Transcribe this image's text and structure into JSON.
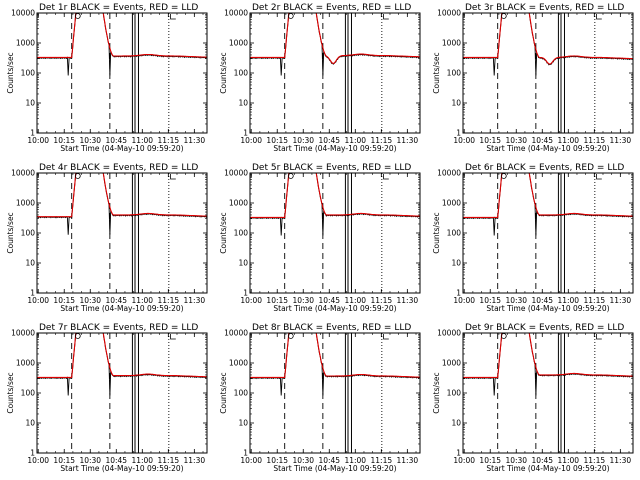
{
  "colors": {
    "background": "#ffffff",
    "events": "#000000",
    "lld": "#dd0000"
  },
  "chart_data": [
    {
      "type": "line",
      "title": "Det 1r  BLACK = Events, RED = LLD",
      "xlabel": "Start Time (04-May-10 09:59:20)",
      "ylabel": "Counts/sec",
      "yscale": "log",
      "ylim": [
        1,
        10000
      ],
      "x_ticks": [
        "10:00",
        "10:15",
        "10:30",
        "10:45",
        "11:00",
        "11:15",
        "11:30"
      ],
      "y_ticks": [
        "1",
        "10",
        "100",
        "1000",
        "10000"
      ],
      "xlim_min": [
        0,
        98
      ],
      "dashed_vlines_min": [
        20,
        42
      ],
      "solid_vlines_min": [
        55,
        56.5,
        58.5
      ],
      "dotted_vlines_min": [
        76
      ],
      "baseline": 330,
      "peak": 12000,
      "rise_min": [
        20,
        22.5
      ],
      "fall_min": [
        38,
        44
      ],
      "post_level": 370,
      "dip_min": 48,
      "dip_factor": 1.0,
      "spike_min": [
        18,
        42
      ],
      "series": [
        {
          "name": "Events",
          "color": "#000000"
        },
        {
          "name": "LLD",
          "color": "#dd0000"
        }
      ]
    },
    {
      "type": "line",
      "title": "Det 2r  BLACK = Events, RED = LLD",
      "xlabel": "Start Time (04-May-10 09:59:20)",
      "ylabel": "Counts/sec",
      "yscale": "log",
      "ylim": [
        1,
        10000
      ],
      "x_ticks": [
        "10:00",
        "10:15",
        "10:30",
        "10:45",
        "11:00",
        "11:15",
        "11:30"
      ],
      "y_ticks": [
        "1",
        "10",
        "100",
        "1000",
        "10000"
      ],
      "xlim_min": [
        0,
        98
      ],
      "dashed_vlines_min": [
        20,
        42
      ],
      "solid_vlines_min": [
        55,
        56.5,
        58.5
      ],
      "dotted_vlines_min": [
        76
      ],
      "baseline": 330,
      "peak": 12000,
      "rise_min": [
        20,
        22.5
      ],
      "fall_min": [
        38,
        44
      ],
      "post_level": 380,
      "dip_min": 48,
      "dip_factor": 0.55,
      "spike_min": [
        18,
        42
      ],
      "series": [
        {
          "name": "Events",
          "color": "#000000"
        },
        {
          "name": "LLD",
          "color": "#dd0000"
        }
      ]
    },
    {
      "type": "line",
      "title": "Det 3r  BLACK = Events, RED = LLD",
      "xlabel": "Start Time (04-May-10 09:59:20)",
      "ylabel": "Counts/sec",
      "yscale": "log",
      "ylim": [
        1,
        10000
      ],
      "x_ticks": [
        "10:00",
        "10:15",
        "10:30",
        "10:45",
        "11:00",
        "11:15",
        "11:30"
      ],
      "y_ticks": [
        "1",
        "10",
        "100",
        "1000",
        "10000"
      ],
      "xlim_min": [
        0,
        98
      ],
      "dashed_vlines_min": [
        20,
        42
      ],
      "solid_vlines_min": [
        55,
        56.5,
        58.5
      ],
      "dotted_vlines_min": [
        76
      ],
      "baseline": 330,
      "peak": 12000,
      "rise_min": [
        20,
        22.5
      ],
      "fall_min": [
        38,
        44
      ],
      "post_level": 330,
      "dip_min": 50,
      "dip_factor": 0.6,
      "spike_min": [
        18,
        42
      ],
      "series": [
        {
          "name": "Events",
          "color": "#000000"
        },
        {
          "name": "LLD",
          "color": "#dd0000"
        }
      ]
    },
    {
      "type": "line",
      "title": "Det 4r  BLACK = Events, RED = LLD",
      "xlabel": "Start Time (04-May-10 09:59:20)",
      "ylabel": "Counts/sec",
      "yscale": "log",
      "ylim": [
        1,
        10000
      ],
      "x_ticks": [
        "10:00",
        "10:15",
        "10:30",
        "10:45",
        "11:00",
        "11:15",
        "11:30"
      ],
      "y_ticks": [
        "1",
        "10",
        "100",
        "1000",
        "10000"
      ],
      "xlim_min": [
        0,
        98
      ],
      "dashed_vlines_min": [
        20,
        42
      ],
      "solid_vlines_min": [
        55,
        56.5,
        58.5
      ],
      "dotted_vlines_min": [
        76
      ],
      "baseline": 350,
      "peak": 12000,
      "rise_min": [
        20,
        22.5
      ],
      "fall_min": [
        38,
        44
      ],
      "post_level": 400,
      "dip_min": 48,
      "dip_factor": 1.0,
      "spike_min": [
        18,
        42
      ],
      "series": [
        {
          "name": "Events",
          "color": "#000000"
        },
        {
          "name": "LLD",
          "color": "#dd0000"
        }
      ]
    },
    {
      "type": "line",
      "title": "Det 5r  BLACK = Events, RED = LLD",
      "xlabel": "Start Time (04-May-10 09:59:20)",
      "ylabel": "Counts/sec",
      "yscale": "log",
      "ylim": [
        1,
        10000
      ],
      "x_ticks": [
        "10:00",
        "10:15",
        "10:30",
        "10:45",
        "11:00",
        "11:15",
        "11:30"
      ],
      "y_ticks": [
        "1",
        "10",
        "100",
        "1000",
        "10000"
      ],
      "xlim_min": [
        0,
        98
      ],
      "dashed_vlines_min": [
        20,
        42
      ],
      "solid_vlines_min": [
        55,
        56.5,
        58.5
      ],
      "dotted_vlines_min": [
        76
      ],
      "baseline": 330,
      "peak": 12000,
      "rise_min": [
        20,
        22.5
      ],
      "fall_min": [
        38,
        44
      ],
      "post_level": 400,
      "dip_min": 48,
      "dip_factor": 1.0,
      "spike_min": [
        18,
        42
      ],
      "series": [
        {
          "name": "Events",
          "color": "#000000"
        },
        {
          "name": "LLD",
          "color": "#dd0000"
        }
      ]
    },
    {
      "type": "line",
      "title": "Det 6r  BLACK = Events, RED = LLD",
      "xlabel": "Start Time (04-May-10 09:59:20)",
      "ylabel": "Counts/sec",
      "yscale": "log",
      "ylim": [
        1,
        10000
      ],
      "x_ticks": [
        "10:00",
        "10:15",
        "10:30",
        "10:45",
        "11:00",
        "11:15",
        "11:30"
      ],
      "y_ticks": [
        "1",
        "10",
        "100",
        "1000",
        "10000"
      ],
      "xlim_min": [
        0,
        98
      ],
      "dashed_vlines_min": [
        20,
        42
      ],
      "solid_vlines_min": [
        55,
        56.5,
        58.5
      ],
      "dotted_vlines_min": [
        76
      ],
      "baseline": 330,
      "peak": 12000,
      "rise_min": [
        20,
        22.5
      ],
      "fall_min": [
        38,
        44
      ],
      "post_level": 400,
      "dip_min": 48,
      "dip_factor": 1.0,
      "spike_min": [
        18,
        42
      ],
      "series": [
        {
          "name": "Events",
          "color": "#000000"
        },
        {
          "name": "LLD",
          "color": "#dd0000"
        }
      ]
    },
    {
      "type": "line",
      "title": "Det 7r  BLACK = Events, RED = LLD",
      "xlabel": "Start Time (04-May-10 09:59:20)",
      "ylabel": "Counts/sec",
      "yscale": "log",
      "ylim": [
        1,
        10000
      ],
      "x_ticks": [
        "10:00",
        "10:15",
        "10:30",
        "10:45",
        "11:00",
        "11:15",
        "11:30"
      ],
      "y_ticks": [
        "1",
        "10",
        "100",
        "1000",
        "10000"
      ],
      "xlim_min": [
        0,
        98
      ],
      "dashed_vlines_min": [
        20,
        42
      ],
      "solid_vlines_min": [
        55,
        56.5,
        58.5
      ],
      "dotted_vlines_min": [
        76
      ],
      "baseline": 330,
      "peak": 12000,
      "rise_min": [
        20,
        22.5
      ],
      "fall_min": [
        38,
        44
      ],
      "post_level": 380,
      "dip_min": 48,
      "dip_factor": 1.0,
      "spike_min": [
        18,
        42
      ],
      "series": [
        {
          "name": "Events",
          "color": "#000000"
        },
        {
          "name": "LLD",
          "color": "#dd0000"
        }
      ]
    },
    {
      "type": "line",
      "title": "Det 8r  BLACK = Events, RED = LLD",
      "xlabel": "Start Time (04-May-10 09:59:20)",
      "ylabel": "Counts/sec",
      "yscale": "log",
      "ylim": [
        1,
        10000
      ],
      "x_ticks": [
        "10:00",
        "10:15",
        "10:30",
        "10:45",
        "11:00",
        "11:15",
        "11:30"
      ],
      "y_ticks": [
        "1",
        "10",
        "100",
        "1000",
        "10000"
      ],
      "xlim_min": [
        0,
        98
      ],
      "dashed_vlines_min": [
        20,
        42
      ],
      "solid_vlines_min": [
        55,
        56.5,
        58.5
      ],
      "dotted_vlines_min": [
        76
      ],
      "baseline": 330,
      "peak": 12000,
      "rise_min": [
        20,
        22.5
      ],
      "fall_min": [
        38,
        44
      ],
      "post_level": 370,
      "dip_min": 48,
      "dip_factor": 1.0,
      "spike_min": [
        18,
        42
      ],
      "series": [
        {
          "name": "Events",
          "color": "#000000"
        },
        {
          "name": "LLD",
          "color": "#dd0000"
        }
      ]
    },
    {
      "type": "line",
      "title": "Det 9r  BLACK = Events, RED = LLD",
      "xlabel": "Start Time (04-May-10 09:59:20)",
      "ylabel": "Counts/sec",
      "yscale": "log",
      "ylim": [
        1,
        10000
      ],
      "x_ticks": [
        "10:00",
        "10:15",
        "10:30",
        "10:45",
        "11:00",
        "11:15",
        "11:30"
      ],
      "y_ticks": [
        "1",
        "10",
        "100",
        "1000",
        "10000"
      ],
      "xlim_min": [
        0,
        98
      ],
      "dashed_vlines_min": [
        20,
        42
      ],
      "solid_vlines_min": [
        55,
        56.5,
        58.5
      ],
      "dotted_vlines_min": [
        76
      ],
      "baseline": 330,
      "peak": 12000,
      "rise_min": [
        20,
        22.5
      ],
      "fall_min": [
        38,
        44
      ],
      "post_level": 400,
      "dip_min": 48,
      "dip_factor": 1.0,
      "spike_min": [
        18,
        42
      ],
      "series": [
        {
          "name": "Events",
          "color": "#000000"
        },
        {
          "name": "LLD",
          "color": "#dd0000"
        }
      ]
    }
  ]
}
